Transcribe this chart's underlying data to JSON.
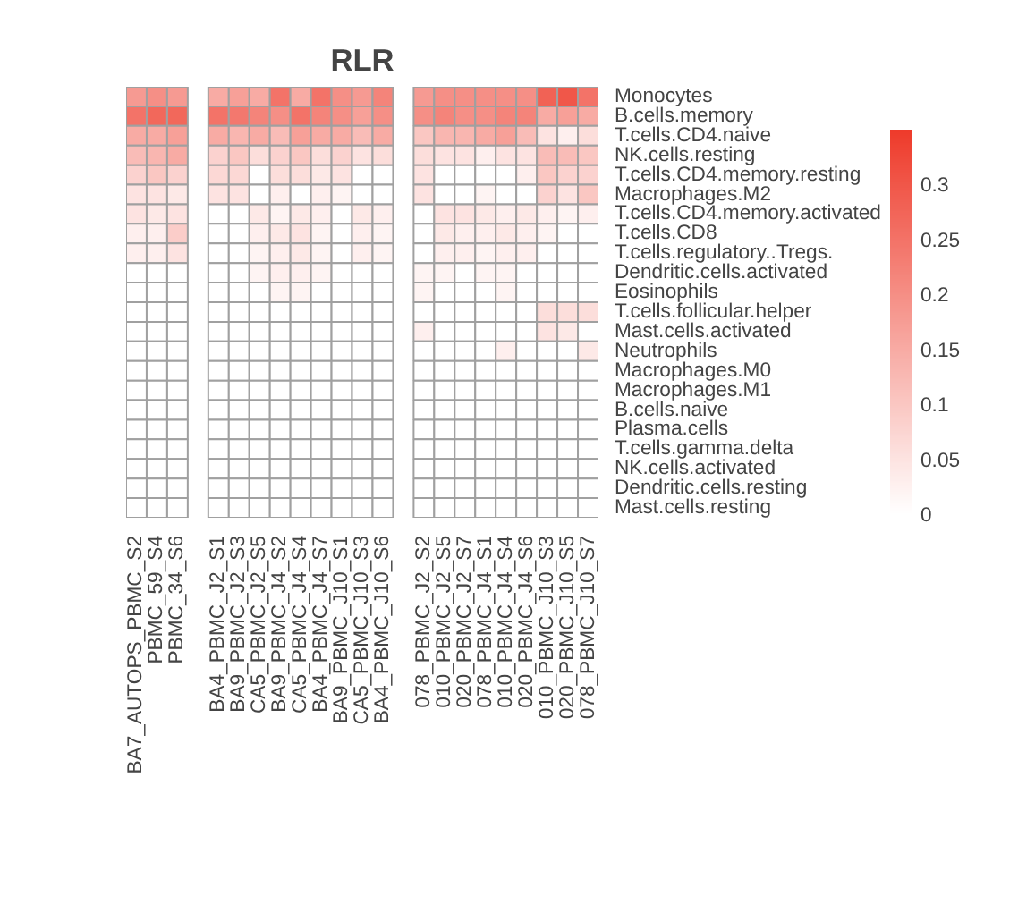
{
  "chart_data": {
    "type": "heatmap",
    "title": "RLR",
    "categories": [
      "BA7_AUTOPS_PBMC_S2",
      "PBMC_59_S4",
      "PBMC_34_S6",
      null,
      "BA4_PBMC_J2_S1",
      "BA9_PBMC_J2_S3",
      "CA5_PBMC_J2_S5",
      "BA9_PBMC_J4_S2",
      "CA5_PBMC_J4_S4",
      "BA4_PBMC_J4_S7",
      "BA9_PBMC_J10_S1",
      "CA5_PBMC_J10_S3",
      "BA4_PBMC_J10_S6",
      null,
      "078_PBMC_J2_S2",
      "010_PBMC_J2_S5",
      "020_PBMC_J2_S7",
      "078_PBMC_J4_S1",
      "010_PBMC_J4_S4",
      "020_PBMC_J4_S6",
      "010_PBMC_J10_S3",
      "020_PBMC_J10_S5",
      "078_PBMC_J10_S7"
    ],
    "y_categories": [
      "Monocytes",
      "B.cells.memory",
      "T.cells.CD4.naive",
      "NK.cells.resting",
      "T.cells.CD4.memory.resting",
      "Macrophages.M2",
      "T.cells.CD4.memory.activated",
      "T.cells.CD8",
      "T.cells.regulatory..Tregs.",
      "Dendritic.cells.activated",
      "Eosinophils",
      "T.cells.follicular.helper",
      "Mast.cells.activated",
      "Neutrophils",
      "Macrophages.M0",
      "Macrophages.M1",
      "B.cells.naive",
      "Plasma.cells",
      "T.cells.gamma.delta",
      "NK.cells.activated",
      "Dendritic.cells.resting",
      "Mast.cells.resting"
    ],
    "clim": [
      0,
      0.35
    ],
    "cticks": [
      0,
      0.05,
      0.1,
      0.15,
      0.2,
      0.25,
      0.3
    ],
    "cells": [
      [
        0.18,
        0.2,
        0.18,
        null,
        0.15,
        0.17,
        0.15,
        0.25,
        0.15,
        0.25,
        0.2,
        0.18,
        0.22,
        null,
        0.18,
        0.2,
        0.2,
        0.2,
        0.2,
        0.2,
        0.28,
        0.3,
        0.25
      ],
      [
        0.25,
        0.27,
        0.27,
        null,
        0.25,
        0.24,
        0.22,
        0.2,
        0.25,
        0.22,
        0.2,
        0.17,
        0.2,
        null,
        0.2,
        0.22,
        0.2,
        0.2,
        0.22,
        0.22,
        0.15,
        0.17,
        0.15
      ],
      [
        0.15,
        0.15,
        0.17,
        null,
        0.15,
        0.13,
        0.15,
        0.12,
        0.17,
        0.15,
        0.15,
        0.12,
        0.15,
        null,
        0.1,
        0.13,
        0.13,
        0.15,
        0.17,
        0.12,
        0.05,
        0.03,
        0.06
      ],
      [
        0.12,
        0.13,
        0.15,
        null,
        0.08,
        0.1,
        0.06,
        0.08,
        0.1,
        0.06,
        0.08,
        0.05,
        0.06,
        null,
        0.06,
        0.05,
        0.05,
        0.03,
        0.05,
        0.05,
        0.12,
        0.12,
        0.1
      ],
      [
        0.08,
        0.1,
        0.08,
        null,
        0.07,
        0.07,
        0,
        0.06,
        0.06,
        0.04,
        0.05,
        0,
        0,
        null,
        0.05,
        0,
        0,
        0,
        0,
        0.03,
        0.1,
        0.08,
        0.08
      ],
      [
        0.05,
        0.05,
        0.04,
        null,
        0.05,
        0.05,
        0,
        0.03,
        0,
        0.03,
        0.02,
        0,
        0,
        null,
        0.05,
        0,
        0,
        0.02,
        0,
        0,
        0.08,
        0.05,
        0.1
      ],
      [
        0.05,
        0.04,
        0.05,
        null,
        0,
        0,
        0.04,
        0.02,
        0.04,
        0.03,
        0,
        0.04,
        0.03,
        null,
        0,
        0.05,
        0.05,
        0.04,
        0.03,
        0.04,
        0.03,
        0.02,
        0.03
      ],
      [
        0.03,
        0.03,
        0.09,
        null,
        0,
        0,
        0.03,
        0.04,
        0.05,
        0.02,
        0,
        0.03,
        0.02,
        null,
        0,
        0.04,
        0.03,
        0.03,
        0.04,
        0.03,
        0.02,
        0,
        0
      ],
      [
        0.03,
        0.03,
        0.05,
        null,
        0,
        0,
        0.02,
        0.03,
        0.04,
        0.02,
        0,
        0.03,
        0.02,
        null,
        0,
        0.03,
        0.03,
        0.02,
        0.03,
        0.03,
        0,
        0,
        0
      ],
      [
        0,
        0,
        0,
        null,
        0,
        0,
        0.02,
        0.03,
        0.03,
        0.02,
        0,
        0,
        0,
        null,
        0.02,
        0.02,
        0,
        0.02,
        0.02,
        0,
        0,
        0,
        0
      ],
      [
        0,
        0,
        0,
        null,
        0,
        0,
        0,
        0.02,
        0.02,
        0,
        0,
        0,
        0,
        null,
        0.02,
        0,
        0,
        0,
        0.02,
        0,
        0,
        0,
        0
      ],
      [
        0,
        0,
        0,
        null,
        0,
        0,
        0,
        0,
        0,
        0,
        0,
        0,
        0,
        null,
        0,
        0,
        0,
        0,
        0,
        0,
        0.06,
        0.06,
        0.06
      ],
      [
        0,
        0,
        0,
        null,
        0,
        0,
        0,
        0,
        0,
        0,
        0,
        0,
        0,
        null,
        0.03,
        0,
        0,
        0,
        0,
        0,
        0.05,
        0.04,
        0
      ],
      [
        0,
        0,
        0,
        null,
        0,
        0,
        0,
        0,
        0,
        0,
        0,
        0,
        0,
        null,
        0,
        0,
        0,
        0,
        0.03,
        0,
        0,
        0,
        0.04
      ],
      [
        0,
        0,
        0,
        null,
        0,
        0,
        0,
        0,
        0,
        0,
        0,
        0,
        0,
        null,
        0,
        0,
        0,
        0,
        0,
        0,
        0,
        0,
        0
      ],
      [
        0,
        0,
        0,
        null,
        0,
        0,
        0,
        0,
        0,
        0,
        0,
        0,
        0,
        null,
        0,
        0,
        0,
        0,
        0,
        0,
        0,
        0,
        0
      ],
      [
        0,
        0,
        0,
        null,
        0,
        0,
        0,
        0,
        0,
        0,
        0,
        0,
        0,
        null,
        0,
        0,
        0,
        0,
        0,
        0,
        0,
        0,
        0
      ],
      [
        0,
        0,
        0,
        null,
        0,
        0,
        0,
        0,
        0,
        0,
        0,
        0,
        0,
        null,
        0,
        0,
        0,
        0,
        0,
        0,
        0,
        0,
        0
      ],
      [
        0,
        0,
        0,
        null,
        0,
        0,
        0,
        0,
        0,
        0,
        0,
        0,
        0,
        null,
        0,
        0,
        0,
        0,
        0,
        0,
        0,
        0,
        0
      ],
      [
        0,
        0,
        0,
        null,
        0,
        0,
        0,
        0,
        0,
        0,
        0,
        0,
        0,
        null,
        0,
        0,
        0,
        0,
        0,
        0,
        0,
        0,
        0
      ],
      [
        0,
        0,
        0,
        null,
        0,
        0,
        0,
        0,
        0,
        0,
        0,
        0,
        0,
        null,
        0,
        0,
        0,
        0,
        0,
        0,
        0,
        0,
        0
      ],
      [
        0,
        0,
        0,
        null,
        0,
        0,
        0,
        0,
        0,
        0,
        0,
        0,
        0,
        null,
        0,
        0,
        0,
        0,
        0,
        0,
        0,
        0,
        0
      ]
    ]
  }
}
